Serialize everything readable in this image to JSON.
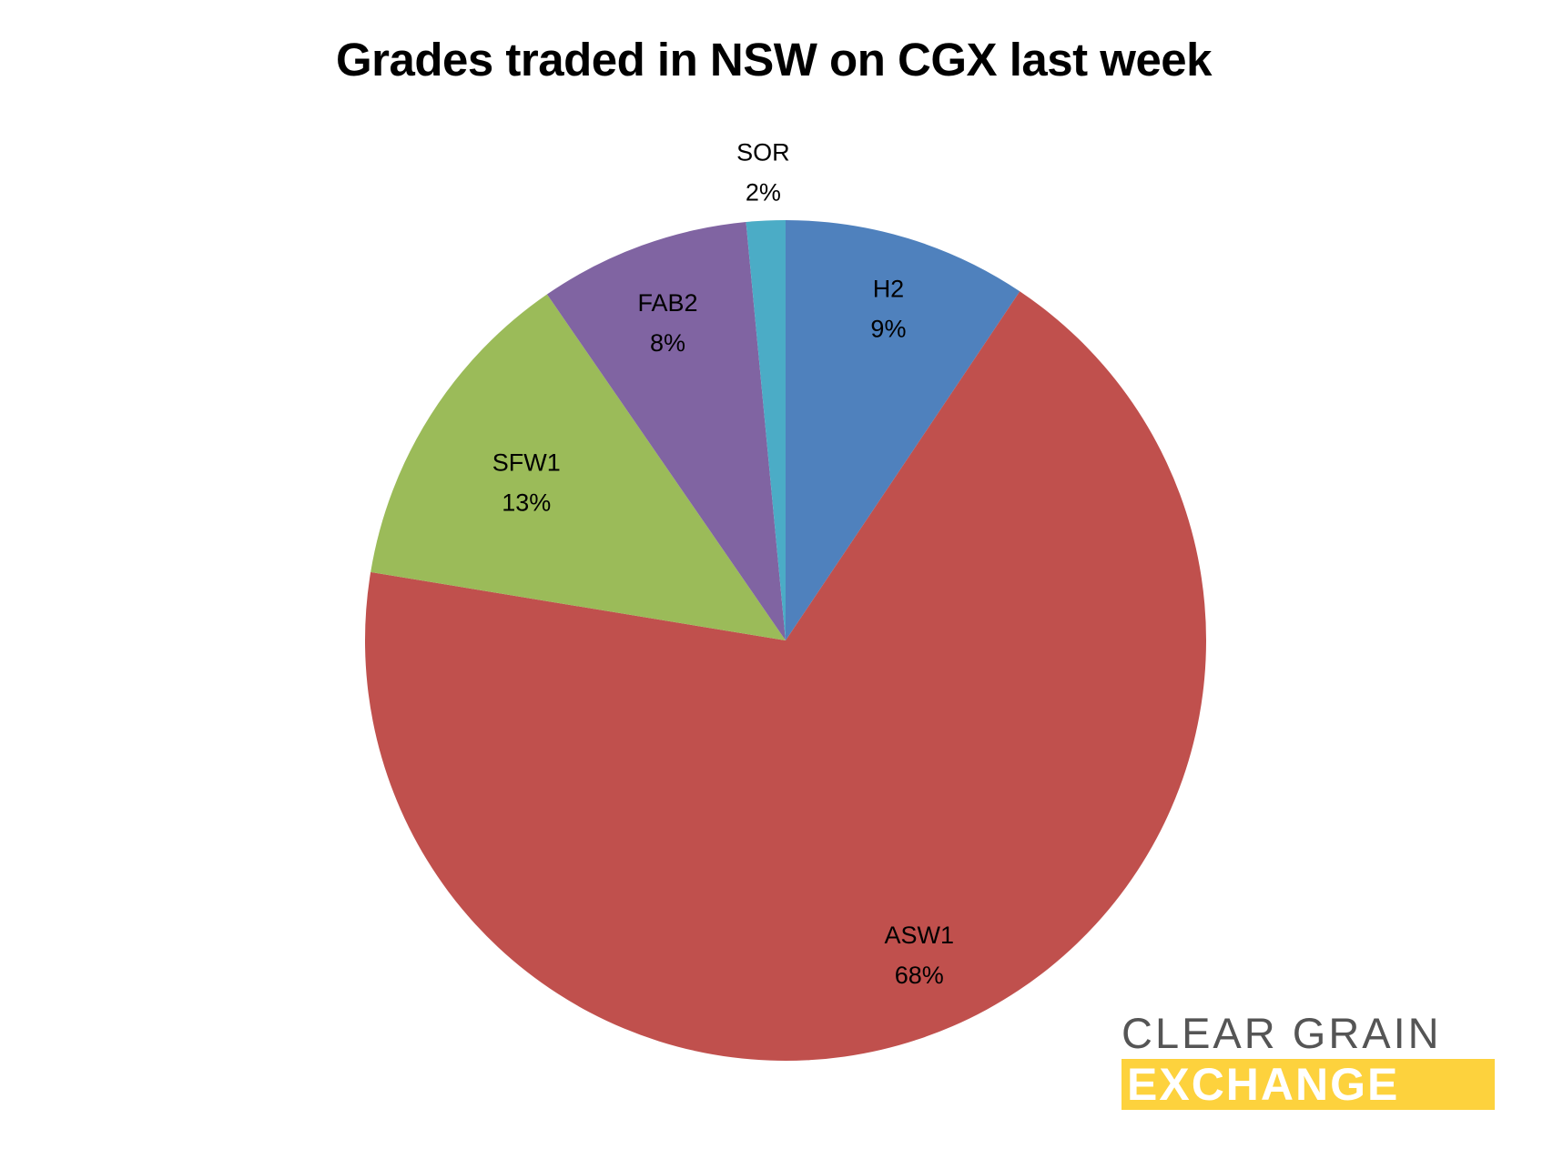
{
  "chart_data": {
    "type": "pie",
    "title": "Grades traded in NSW on CGX last week",
    "start_angle": "12 o'clock",
    "direction": "clockwise",
    "slices": [
      {
        "name": "H2",
        "value": 9.4,
        "label": "9%",
        "color": "#4F81BD"
      },
      {
        "name": "ASW1",
        "value": 68.2,
        "label": "68%",
        "color": "#C0504D"
      },
      {
        "name": "SFW1",
        "value": 12.8,
        "label": "13%",
        "color": "#9BBB59"
      },
      {
        "name": "FAB2",
        "value": 8.1,
        "label": "8%",
        "color": "#8064A2"
      },
      {
        "name": "SOR",
        "value": 1.5,
        "label": "2%",
        "color": "#4BACC6"
      }
    ]
  },
  "logo": {
    "line1": "CLEAR GRAIN",
    "line2": "EXCHANGE",
    "accent": "#FDD23D"
  }
}
